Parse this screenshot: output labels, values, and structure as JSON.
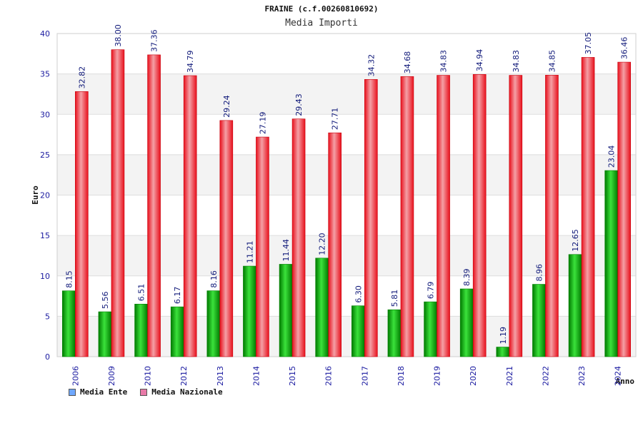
{
  "chart_data": {
    "type": "bar",
    "title": "FRAINE (c.f.00260810692)",
    "subtitle": "Media Importi",
    "xlabel": "Anno",
    "ylabel": "Euro",
    "ylim": [
      0,
      40
    ],
    "yticks": [
      0,
      5,
      10,
      15,
      20,
      25,
      30,
      35,
      40
    ],
    "categories": [
      "2006",
      "2009",
      "2010",
      "2012",
      "2013",
      "2014",
      "2015",
      "2016",
      "2017",
      "2018",
      "2019",
      "2020",
      "2021",
      "2022",
      "2023",
      "2024"
    ],
    "series": [
      {
        "name": "Media Ente",
        "color": "#00a000",
        "legend_color": "#6fa8ff",
        "values": [
          8.15,
          5.56,
          6.51,
          6.17,
          8.16,
          11.21,
          11.44,
          12.2,
          6.3,
          5.81,
          6.79,
          8.39,
          1.19,
          8.96,
          12.65,
          23.04
        ],
        "labels": [
          "8.15",
          "5.56",
          "6.51",
          "6.17",
          "8.16",
          "11.21",
          "11.44",
          "12.20",
          "6.30",
          "5.81",
          "6.79",
          "8.39",
          "1.19",
          "8.96",
          "12.65",
          "23.04"
        ]
      },
      {
        "name": "Media Nazionale",
        "color": "#e8101c",
        "legend_color": "#e87aa8",
        "values": [
          32.82,
          38.0,
          37.36,
          34.79,
          29.24,
          27.19,
          29.43,
          27.71,
          34.32,
          34.68,
          34.83,
          34.94,
          34.83,
          34.85,
          37.05,
          36.46
        ],
        "labels": [
          "32.82",
          "38.00",
          "37.36",
          "34.79",
          "29.24",
          "27.19",
          "29.43",
          "27.71",
          "34.32",
          "34.68",
          "34.83",
          "34.94",
          "34.83",
          "34.85",
          "37.05",
          "36.46"
        ]
      }
    ],
    "grid": true,
    "legend_position": "bottom-left",
    "colors": {
      "band_light": "#f3f3f3",
      "band_white": "#ffffff",
      "grid": "#dddddd",
      "axis_text": "#1a1aa0",
      "value_label": "#111a7a"
    }
  }
}
